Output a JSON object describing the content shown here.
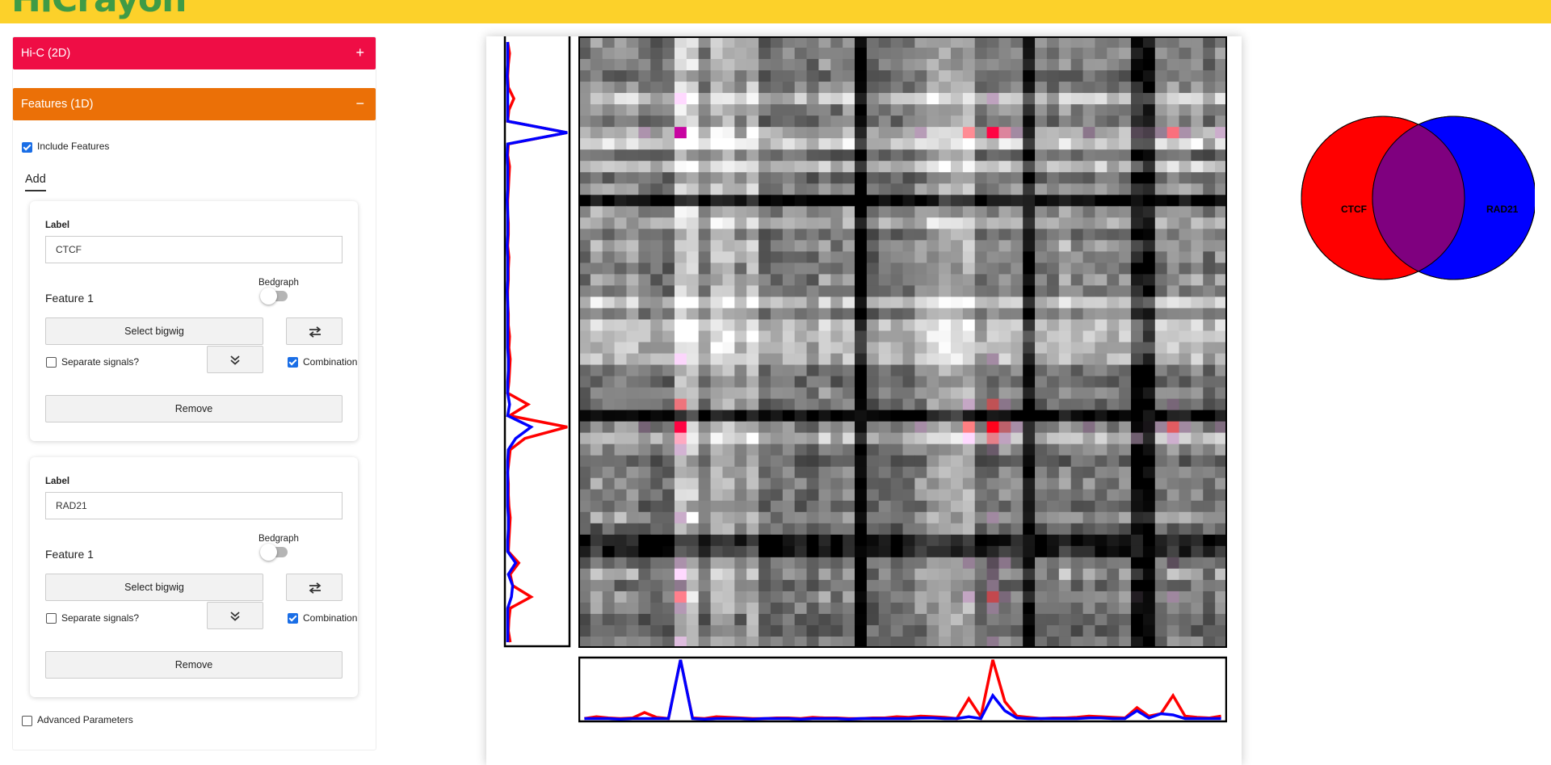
{
  "app": {
    "title": "HiCrayon"
  },
  "sidebar": {
    "hic_panel": {
      "label": "Hi-C (2D)",
      "sign": "+"
    },
    "features_panel": {
      "label": "Features (1D)",
      "sign": "−"
    },
    "include_features": {
      "label": "Include Features",
      "checked": true
    },
    "add_tab": "Add",
    "features": [
      {
        "label_title": "Label",
        "label_value": "CTCF",
        "bedgraph_label": "Bedgraph",
        "feature_name": "Feature 1",
        "select_label": "Select bigwig",
        "separate_label": "Separate signals?",
        "separate_checked": false,
        "combination_label": "Combination",
        "combination_checked": true,
        "remove_label": "Remove"
      },
      {
        "label_title": "Label",
        "label_value": "RAD21",
        "bedgraph_label": "Bedgraph",
        "feature_name": "Feature 1",
        "select_label": "Select bigwig",
        "separate_label": "Separate signals?",
        "separate_checked": false,
        "combination_label": "Combination",
        "combination_checked": true,
        "remove_label": "Remove"
      }
    ],
    "advanced_parameters": {
      "label": "Advanced Parameters",
      "checked": false
    }
  },
  "icons": {
    "swap": "swap-arrows-icon",
    "expand": "double-chevron-down-icon"
  },
  "colors": {
    "topbar": "#fcd12a",
    "logo": "#3f9b46",
    "hic_header": "#ef0d45",
    "features_header": "#eb7007",
    "ctcf": "#ff0000",
    "rad21": "#0000ff",
    "overlap": "#7f007f"
  },
  "venn": {
    "sets": [
      {
        "name": "CTCF",
        "color": "#ff0000"
      },
      {
        "name": "RAD21",
        "color": "#0000ff"
      }
    ],
    "overlap_color": "#7f007f"
  },
  "tracks": {
    "bins": 54,
    "ctcf_signal": [
      0.02,
      0.05,
      0.03,
      0.02,
      0.03,
      0.12,
      0.04,
      0.02,
      0.99,
      0.03,
      0.02,
      0.05,
      0.04,
      0.03,
      0.02,
      0.02,
      0.03,
      0.03,
      0.02,
      0.04,
      0.03,
      0.03,
      0.02,
      0.02,
      0.03,
      0.03,
      0.05,
      0.04,
      0.06,
      0.05,
      0.04,
      0.02,
      0.35,
      0.05,
      0.99,
      0.3,
      0.06,
      0.04,
      0.02,
      0.03,
      0.03,
      0.04,
      0.06,
      0.05,
      0.04,
      0.03,
      0.2,
      0.06,
      0.1,
      0.4,
      0.06,
      0.04,
      0.03,
      0.06
    ],
    "rad21_signal": [
      0.02,
      0.02,
      0.02,
      0.01,
      0.02,
      0.02,
      0.02,
      0.02,
      0.99,
      0.02,
      0.01,
      0.02,
      0.02,
      0.02,
      0.01,
      0.02,
      0.02,
      0.02,
      0.01,
      0.02,
      0.02,
      0.02,
      0.01,
      0.02,
      0.02,
      0.02,
      0.02,
      0.02,
      0.03,
      0.03,
      0.02,
      0.02,
      0.05,
      0.02,
      0.4,
      0.15,
      0.03,
      0.02,
      0.02,
      0.02,
      0.02,
      0.02,
      0.03,
      0.03,
      0.02,
      0.02,
      0.15,
      0.03,
      0.1,
      0.08,
      0.02,
      0.02,
      0.02,
      0.02
    ]
  }
}
